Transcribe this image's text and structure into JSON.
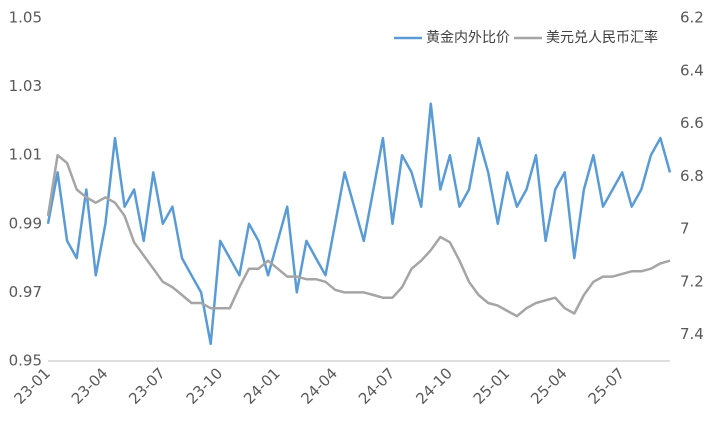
{
  "chart_data": {
    "type": "line",
    "categories": [
      "23-01",
      null,
      null,
      null,
      null,
      null,
      "23-04",
      null,
      null,
      null,
      null,
      null,
      "23-07",
      null,
      null,
      null,
      null,
      null,
      "23-10",
      null,
      null,
      null,
      null,
      null,
      "24-01",
      null,
      null,
      null,
      null,
      null,
      "24-04",
      null,
      null,
      null,
      null,
      null,
      "24-07",
      null,
      null,
      null,
      null,
      null,
      "24-10",
      null,
      null,
      null,
      null,
      null,
      "25-01",
      null,
      null,
      null,
      null,
      null,
      "25-04",
      null,
      null,
      null,
      null,
      null,
      "25-07",
      null,
      null,
      null,
      null,
      null
    ],
    "series": [
      {
        "name": "黄金内外比价",
        "color": "#5b9bd5",
        "values": [
          0.99,
          1.005,
          0.985,
          0.98,
          1.0,
          0.975,
          0.99,
          1.015,
          0.995,
          1.0,
          0.985,
          1.005,
          0.99,
          0.995,
          0.98,
          0.975,
          0.97,
          0.955,
          0.985,
          0.98,
          0.975,
          0.99,
          0.985,
          0.975,
          0.985,
          0.995,
          0.97,
          0.985,
          0.98,
          0.975,
          0.99,
          1.005,
          0.995,
          0.985,
          1.0,
          1.015,
          0.99,
          1.01,
          1.005,
          0.995,
          1.025,
          1.0,
          1.01,
          0.995,
          1.0,
          1.015,
          1.005,
          0.99,
          1.005,
          0.995,
          1.0,
          1.01,
          0.985,
          1.0,
          1.005,
          0.98,
          1.0,
          1.01,
          0.995,
          1.0,
          1.005,
          0.995,
          1.0,
          1.01,
          1.015,
          1.005
        ]
      },
      {
        "name": "美元兑人民币汇率",
        "color": "#a5a5a5",
        "axis": "y2",
        "values": [
          6.95,
          6.72,
          6.75,
          6.85,
          6.88,
          6.9,
          6.88,
          6.9,
          6.95,
          7.05,
          7.1,
          7.15,
          7.2,
          7.22,
          7.25,
          7.28,
          7.28,
          7.3,
          7.3,
          7.3,
          7.22,
          7.15,
          7.15,
          7.12,
          7.15,
          7.18,
          7.18,
          7.19,
          7.19,
          7.2,
          7.23,
          7.24,
          7.24,
          7.24,
          7.25,
          7.26,
          7.26,
          7.22,
          7.15,
          7.12,
          7.08,
          7.03,
          7.05,
          7.12,
          7.2,
          7.25,
          7.28,
          7.29,
          7.31,
          7.33,
          7.3,
          7.28,
          7.27,
          7.26,
          7.3,
          7.32,
          7.25,
          7.2,
          7.18,
          7.18,
          7.17,
          7.16,
          7.16,
          7.15,
          7.13,
          7.12
        ]
      }
    ],
    "ylim": [
      0.95,
      1.05
    ],
    "yticks": [
      0.95,
      0.97,
      0.99,
      1.01,
      1.03,
      1.05
    ],
    "y2lim": [
      6.2,
      7.5
    ],
    "y2ticks": [
      6.2,
      6.4,
      6.6,
      6.8,
      7,
      7.2,
      7.4
    ],
    "y2_inverted": true,
    "grid": false,
    "legend": "upper right"
  }
}
